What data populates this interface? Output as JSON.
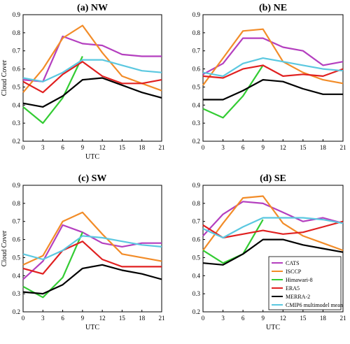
{
  "chart_data": [
    {
      "type": "line",
      "title": "(a) NW",
      "xlabel": "UTC",
      "ylabel": "Cloud Cover",
      "x": [
        0,
        3,
        6,
        9,
        12,
        15,
        18,
        21
      ],
      "xlim": [
        0,
        21
      ],
      "ylim": [
        0.2,
        0.9
      ],
      "xticks": [
        "0",
        "3",
        "6",
        "9",
        "12",
        "15",
        "18",
        "21"
      ],
      "yticks": [
        "0.2",
        "0.3",
        "0.4",
        "0.5",
        "0.6",
        "0.7",
        "0.8",
        "0.9"
      ],
      "grid": false,
      "series": [
        {
          "name": "CATS",
          "color": "#b43fbf",
          "points": [
            [
              0,
              0.54
            ],
            [
              3,
              0.53
            ],
            [
              6,
              0.78
            ],
            [
              9,
              0.74
            ],
            [
              12,
              0.73
            ],
            [
              15,
              0.68
            ],
            [
              18,
              0.67
            ],
            [
              21,
              0.67
            ]
          ]
        },
        {
          "name": "ISCCP",
          "color": "#f28c28",
          "points": [
            [
              0,
              0.47
            ],
            [
              3,
              0.6
            ],
            [
              6,
              0.77
            ],
            [
              9,
              0.84
            ],
            [
              12,
              0.69
            ],
            [
              15,
              0.56
            ],
            [
              18,
              0.52
            ],
            [
              21,
              0.48
            ]
          ]
        },
        {
          "name": "Himawari-8",
          "color": "#33cc33",
          "points": [
            [
              0,
              0.39
            ],
            [
              3,
              0.3
            ],
            [
              6,
              0.44
            ],
            [
              9,
              0.67
            ]
          ]
        },
        {
          "name": "ERA5",
          "color": "#e02020",
          "points": [
            [
              0,
              0.53
            ],
            [
              3,
              0.47
            ],
            [
              6,
              0.57
            ],
            [
              9,
              0.64
            ],
            [
              12,
              0.56
            ],
            [
              15,
              0.52
            ],
            [
              18,
              0.52
            ],
            [
              21,
              0.54
            ]
          ]
        },
        {
          "name": "MERRA-2",
          "color": "#000000",
          "points": [
            [
              0,
              0.41
            ],
            [
              3,
              0.39
            ],
            [
              6,
              0.45
            ],
            [
              9,
              0.54
            ],
            [
              12,
              0.55
            ],
            [
              15,
              0.51
            ],
            [
              18,
              0.47
            ],
            [
              21,
              0.44
            ]
          ]
        },
        {
          "name": "CMIP6 multimodel mean",
          "color": "#5bc8e0",
          "points": [
            [
              0,
              0.55
            ],
            [
              3,
              0.53
            ],
            [
              6,
              0.58
            ],
            [
              9,
              0.65
            ],
            [
              12,
              0.65
            ],
            [
              15,
              0.62
            ],
            [
              18,
              0.59
            ],
            [
              21,
              0.58
            ]
          ]
        }
      ]
    },
    {
      "type": "line",
      "title": "(b) NE",
      "xlabel": "",
      "ylabel": "",
      "x": [
        0,
        3,
        6,
        9,
        12,
        15,
        18,
        21
      ],
      "xlim": [
        0,
        21
      ],
      "ylim": [
        0.2,
        0.9
      ],
      "xticks": [
        "0",
        "3",
        "6",
        "9",
        "12",
        "15",
        "18",
        "21"
      ],
      "yticks": [
        "0.2",
        "0.3",
        "0.4",
        "0.5",
        "0.6",
        "0.7",
        "0.8",
        "0.9"
      ],
      "grid": false,
      "series": [
        {
          "name": "CATS",
          "color": "#b43fbf",
          "points": [
            [
              0,
              0.57
            ],
            [
              3,
              0.63
            ],
            [
              6,
              0.77
            ],
            [
              9,
              0.77
            ],
            [
              12,
              0.72
            ],
            [
              15,
              0.7
            ],
            [
              18,
              0.62
            ],
            [
              21,
              0.64
            ]
          ]
        },
        {
          "name": "ISCCP",
          "color": "#f28c28",
          "points": [
            [
              0,
              0.51
            ],
            [
              3,
              0.66
            ],
            [
              6,
              0.81
            ],
            [
              9,
              0.82
            ],
            [
              12,
              0.64
            ],
            [
              15,
              0.58
            ],
            [
              18,
              0.54
            ],
            [
              21,
              0.52
            ]
          ]
        },
        {
          "name": "Himawari-8",
          "color": "#33cc33",
          "points": [
            [
              0,
              0.38
            ],
            [
              3,
              0.33
            ],
            [
              6,
              0.45
            ],
            [
              9,
              0.62
            ]
          ]
        },
        {
          "name": "ERA5",
          "color": "#e02020",
          "points": [
            [
              0,
              0.56
            ],
            [
              3,
              0.55
            ],
            [
              6,
              0.6
            ],
            [
              9,
              0.62
            ],
            [
              12,
              0.56
            ],
            [
              15,
              0.57
            ],
            [
              18,
              0.56
            ],
            [
              21,
              0.6
            ]
          ]
        },
        {
          "name": "MERRA-2",
          "color": "#000000",
          "points": [
            [
              0,
              0.43
            ],
            [
              3,
              0.43
            ],
            [
              6,
              0.48
            ],
            [
              9,
              0.54
            ],
            [
              12,
              0.53
            ],
            [
              15,
              0.49
            ],
            [
              18,
              0.46
            ],
            [
              21,
              0.46
            ]
          ]
        },
        {
          "name": "CMIP6 multimodel mean",
          "color": "#5bc8e0",
          "points": [
            [
              0,
              0.58
            ],
            [
              3,
              0.56
            ],
            [
              6,
              0.63
            ],
            [
              9,
              0.66
            ],
            [
              12,
              0.64
            ],
            [
              15,
              0.62
            ],
            [
              18,
              0.6
            ],
            [
              21,
              0.59
            ]
          ]
        }
      ]
    },
    {
      "type": "line",
      "title": "(c) SW",
      "xlabel": "UTC",
      "ylabel": "Cloud Cover",
      "x": [
        0,
        3,
        6,
        9,
        12,
        15,
        18,
        21
      ],
      "xlim": [
        0,
        21
      ],
      "ylim": [
        0.2,
        0.9
      ],
      "xticks": [
        "0",
        "3",
        "6",
        "9",
        "12",
        "15",
        "18",
        "21"
      ],
      "yticks": [
        "0.2",
        "0.3",
        "0.4",
        "0.5",
        "0.6",
        "0.7",
        "0.8",
        "0.9"
      ],
      "grid": false,
      "series": [
        {
          "name": "CATS",
          "color": "#b43fbf",
          "points": [
            [
              0,
              0.38
            ],
            [
              3,
              0.48
            ],
            [
              6,
              0.68
            ],
            [
              9,
              0.64
            ],
            [
              12,
              0.58
            ],
            [
              15,
              0.56
            ],
            [
              18,
              0.58
            ],
            [
              21,
              0.58
            ]
          ]
        },
        {
          "name": "ISCCP",
          "color": "#f28c28",
          "points": [
            [
              0,
              0.46
            ],
            [
              3,
              0.51
            ],
            [
              6,
              0.7
            ],
            [
              9,
              0.75
            ],
            [
              12,
              0.63
            ],
            [
              15,
              0.52
            ],
            [
              18,
              0.5
            ],
            [
              21,
              0.48
            ]
          ]
        },
        {
          "name": "Himawari-8",
          "color": "#33cc33",
          "points": [
            [
              0,
              0.34
            ],
            [
              3,
              0.28
            ],
            [
              6,
              0.39
            ],
            [
              9,
              0.64
            ]
          ]
        },
        {
          "name": "ERA5",
          "color": "#e02020",
          "points": [
            [
              0,
              0.44
            ],
            [
              3,
              0.41
            ],
            [
              6,
              0.54
            ],
            [
              9,
              0.59
            ],
            [
              12,
              0.49
            ],
            [
              15,
              0.45
            ],
            [
              18,
              0.45
            ],
            [
              21,
              0.45
            ]
          ]
        },
        {
          "name": "MERRA-2",
          "color": "#000000",
          "points": [
            [
              0,
              0.31
            ],
            [
              3,
              0.3
            ],
            [
              6,
              0.35
            ],
            [
              9,
              0.44
            ],
            [
              12,
              0.46
            ],
            [
              15,
              0.43
            ],
            [
              18,
              0.41
            ],
            [
              21,
              0.38
            ]
          ]
        },
        {
          "name": "CMIP6 multimodel mean",
          "color": "#5bc8e0",
          "points": [
            [
              0,
              0.52
            ],
            [
              3,
              0.49
            ],
            [
              6,
              0.54
            ],
            [
              9,
              0.62
            ],
            [
              12,
              0.61
            ],
            [
              15,
              0.59
            ],
            [
              18,
              0.57
            ],
            [
              21,
              0.56
            ]
          ]
        }
      ]
    },
    {
      "type": "line",
      "title": "(d) SE",
      "xlabel": "UTC",
      "ylabel": "",
      "x": [
        0,
        3,
        6,
        9,
        12,
        15,
        18,
        21
      ],
      "xlim": [
        0,
        21
      ],
      "ylim": [
        0.2,
        0.9
      ],
      "xticks": [
        "0",
        "3",
        "6",
        "9",
        "12",
        "15",
        "18",
        "21"
      ],
      "yticks": [
        "0.2",
        "0.3",
        "0.4",
        "0.5",
        "0.6",
        "0.7",
        "0.8",
        "0.9"
      ],
      "grid": false,
      "legend": "lower-right",
      "series": [
        {
          "name": "CATS",
          "color": "#b43fbf",
          "points": [
            [
              0,
              0.62
            ],
            [
              3,
              0.74
            ],
            [
              6,
              0.81
            ],
            [
              9,
              0.8
            ],
            [
              12,
              0.75
            ],
            [
              15,
              0.7
            ],
            [
              18,
              0.72
            ],
            [
              21,
              0.69
            ]
          ]
        },
        {
          "name": "ISCCP",
          "color": "#f28c28",
          "points": [
            [
              0,
              0.54
            ],
            [
              3,
              0.69
            ],
            [
              6,
              0.83
            ],
            [
              9,
              0.84
            ],
            [
              12,
              0.69
            ],
            [
              15,
              0.62
            ],
            [
              18,
              0.58
            ],
            [
              21,
              0.54
            ]
          ]
        },
        {
          "name": "Himawari-8",
          "color": "#33cc33",
          "points": [
            [
              0,
              0.54
            ],
            [
              3,
              0.47
            ],
            [
              6,
              0.52
            ],
            [
              9,
              0.71
            ]
          ]
        },
        {
          "name": "ERA5",
          "color": "#e02020",
          "points": [
            [
              0,
              0.68
            ],
            [
              3,
              0.61
            ],
            [
              6,
              0.63
            ],
            [
              9,
              0.65
            ],
            [
              12,
              0.63
            ],
            [
              15,
              0.64
            ],
            [
              18,
              0.67
            ],
            [
              21,
              0.7
            ]
          ]
        },
        {
          "name": "MERRA-2",
          "color": "#000000",
          "points": [
            [
              0,
              0.47
            ],
            [
              3,
              0.46
            ],
            [
              6,
              0.52
            ],
            [
              9,
              0.6
            ],
            [
              12,
              0.6
            ],
            [
              15,
              0.57
            ],
            [
              18,
              0.55
            ],
            [
              21,
              0.53
            ]
          ]
        },
        {
          "name": "CMIP6 multimodel mean",
          "color": "#5bc8e0",
          "points": [
            [
              0,
              0.66
            ],
            [
              3,
              0.61
            ],
            [
              6,
              0.67
            ],
            [
              9,
              0.72
            ],
            [
              12,
              0.72
            ],
            [
              15,
              0.72
            ],
            [
              18,
              0.71
            ],
            [
              21,
              0.69
            ]
          ]
        }
      ]
    }
  ],
  "legend": [
    {
      "label": "CATS",
      "color": "#b43fbf"
    },
    {
      "label": "ISCCP",
      "color": "#f28c28"
    },
    {
      "label": "Himawari-8",
      "color": "#33cc33"
    },
    {
      "label": "ERA5",
      "color": "#e02020"
    },
    {
      "label": "MERRA-2",
      "color": "#000000"
    },
    {
      "label": "CMIP6 multimodel mean",
      "color": "#5bc8e0"
    }
  ]
}
